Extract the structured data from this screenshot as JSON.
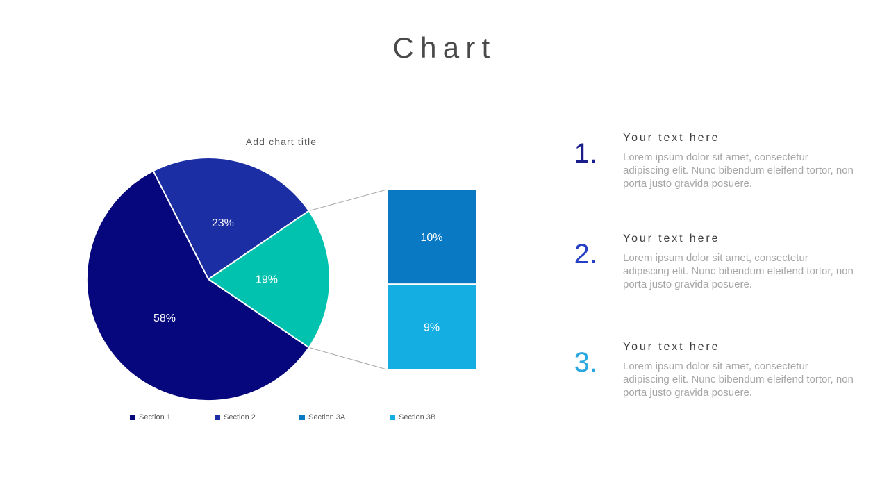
{
  "slide_title": "Chart",
  "chart": {
    "title": "Add chart title",
    "pie": {
      "slices": [
        {
          "label": "Section 1",
          "value": 58,
          "display": "58%",
          "color": "#06077D"
        },
        {
          "label": "Section 2",
          "value": 23,
          "display": "23%",
          "color": "#1C2EA4"
        },
        {
          "label": "Section 3",
          "value": 19,
          "display": "19%",
          "color": "#00C2AE"
        }
      ]
    },
    "bar": {
      "segments": [
        {
          "label": "Section 3A",
          "value": 10,
          "display": "10%",
          "color": "#0A79C3"
        },
        {
          "label": "Section 3B",
          "value": 9,
          "display": "9%",
          "color": "#14AEE2"
        }
      ]
    },
    "legend": [
      {
        "label": "Section 1",
        "color": "#06077D"
      },
      {
        "label": "Section 2",
        "color": "#1C2EA4"
      },
      {
        "label": "Section 3A",
        "color": "#0A79C3"
      },
      {
        "label": "Section 3B",
        "color": "#14AEE2"
      }
    ]
  },
  "chart_data": {
    "type": "pie",
    "subtype": "pie-of-pie",
    "title": "Add chart title",
    "pie_series": {
      "labels": [
        "Section 1",
        "Section 2",
        "Section 3 (expanded into 3A + 3B)"
      ],
      "values": [
        58,
        23,
        19
      ]
    },
    "bar_of_pie_series": {
      "labels": [
        "Section 3A",
        "Section 3B"
      ],
      "values": [
        10,
        9
      ]
    },
    "data_labels": "percent",
    "legend": [
      "Section 1",
      "Section 2",
      "Section 3A",
      "Section 3B"
    ],
    "legend_position": "bottom",
    "colors": [
      "#06077D",
      "#1C2EA4",
      "#0A79C3",
      "#14AEE2"
    ],
    "teal_group_color": "#00C2AE"
  },
  "items": [
    {
      "number": "1.",
      "number_color": "#191E8C",
      "heading": "Your text here",
      "body": "Lorem ipsum dolor sit amet, consectetur adipiscing elit. Nunc bibendum eleifend tortor, non porta justo gravida posuere."
    },
    {
      "number": "2.",
      "number_color": "#2540C4",
      "heading": "Your text here",
      "body": "Lorem ipsum dolor sit amet, consectetur adipiscing elit. Nunc bibendum eleifend tortor, non porta justo gravida posuere."
    },
    {
      "number": "3.",
      "number_color": "#2BA7E0",
      "heading": "Your text here",
      "body": "Lorem ipsum dolor sit amet, consectetur adipiscing elit. Nunc bibendum eleifend tortor, non porta justo gravida posuere."
    }
  ]
}
